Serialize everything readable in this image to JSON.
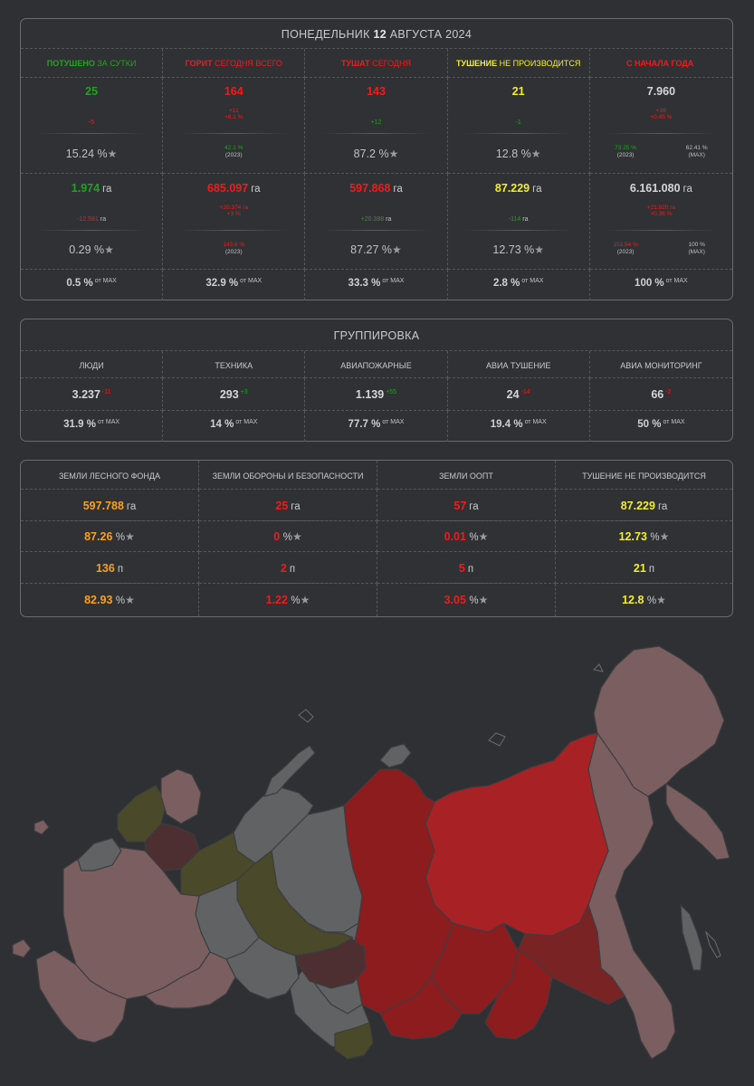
{
  "header": {
    "day": "ПОНЕДЕЛЬНИК",
    "date_num": "12",
    "month_year": "АВГУСТА 2024"
  },
  "summary": {
    "columns": [
      {
        "label_a": "ПОТУШЕНО",
        "label_b": "ЗА СУТКИ",
        "color_a": "#21a321",
        "color_b": "#21a321",
        "count": "25",
        "count_color": "#21a321",
        "count_delta": "-5",
        "count_delta_color": "#ef1c1c",
        "count_pct": "15.24 %",
        "area": "1.974",
        "area_unit": "га",
        "area_color": "#21a321",
        "area_delta": "-12.581",
        "area_delta_unit": "га",
        "area_delta_color": "#ef1c1c",
        "area_pct": "0.29 %",
        "max_pct": "0.5 %",
        "max_label": "от MAX"
      },
      {
        "label_a": "ГОРИТ",
        "label_b": "СЕГОДНЯ ВСЕГО",
        "color_a": "#ef1c1c",
        "color_b": "#ef1c1c",
        "count": "164",
        "count_color": "#ef1c1c",
        "count_delta_1": "+11",
        "count_delta_2": "+6.1 %",
        "count_delta_color": "#ef1c1c",
        "count_year_pct": "42.1 %",
        "count_year_pct_color": "#21a321",
        "count_year": "(2023)",
        "area": "685.097",
        "area_unit": "га",
        "area_color": "#ef1c1c",
        "area_delta_1": "+20.374 га",
        "area_delta_2": "+3 %",
        "area_delta_color": "#ef1c1c",
        "area_year_pct": "143.6 %",
        "area_year_pct_color": "#ef1c1c",
        "area_year": "(2023)",
        "max_pct": "32.9 %",
        "max_label": "от MAX"
      },
      {
        "label_a": "ТУШАТ",
        "label_b": "СЕГОДНЯ",
        "color_a": "#ef1c1c",
        "color_b": "#ef1c1c",
        "count": "143",
        "count_color": "#ef1c1c",
        "count_delta": "+12",
        "count_delta_color": "#21a321",
        "count_pct": "87.2 %",
        "area": "597.868",
        "area_unit": "га",
        "area_color": "#ef1c1c",
        "area_delta": "+20.388",
        "area_delta_unit": "га",
        "area_delta_color": "#21a321",
        "area_pct": "87.27 %",
        "max_pct": "33.3 %",
        "max_label": "от MAX"
      },
      {
        "label_a": "ТУШЕНИЕ",
        "label_b": "НЕ ПРОИЗВОДИТСЯ",
        "color_a": "#f2ef2a",
        "color_b": "#f2ef2a",
        "count": "21",
        "count_color": "#f2ef2a",
        "count_delta": "-1",
        "count_delta_color": "#21a321",
        "count_pct": "12.8 %",
        "area": "87.229",
        "area_unit": "га",
        "area_color": "#f2ef2a",
        "area_delta": "-114",
        "area_delta_unit": "га",
        "area_delta_color": "#21a321",
        "area_pct": "12.73 %",
        "max_pct": "2.8 %",
        "max_label": "от MAX"
      },
      {
        "label_a": "С НАЧАЛА ГОДА",
        "label_b": "",
        "color_a": "#ef1c1c",
        "color_b": "#ef1c1c",
        "count": "7.960",
        "count_color": "#d5d6d8",
        "count_delta_1": "+36",
        "count_delta_2": "+0.45 %",
        "count_delta_color": "#ef1c1c",
        "count_year_pct": "73.25 %",
        "count_year_pct_color": "#21a321",
        "count_year": "(2023)",
        "count_max_pct": "62.41 %",
        "count_max": "(MAX)",
        "area": "6.161.080",
        "area_unit": "га",
        "area_color": "#d5d6d8",
        "area_delta_1": "+21.920 га",
        "area_delta_2": "+0.36 %",
        "area_delta_color": "#ef1c1c",
        "area_year_pct": "153.54 %",
        "area_year_pct_color": "#ef1c1c",
        "area_year": "(2023)",
        "area_max_pct": "100 %",
        "area_max": "(MAX)",
        "max_pct": "100 %",
        "max_label": "от MAX"
      }
    ]
  },
  "group": {
    "title": "ГРУППИРОВКА",
    "columns": [
      {
        "label": "ЛЮДИ",
        "value": "3.237",
        "delta": "-11",
        "delta_color": "#ef1c1c",
        "max_pct": "31.9 %",
        "max_label": "от MAX"
      },
      {
        "label": "ТЕХНИКА",
        "value": "293",
        "delta": "+3",
        "delta_color": "#21a321",
        "max_pct": "14 %",
        "max_label": "от MAX"
      },
      {
        "label": "АВИАПОЖАРНЫЕ",
        "value": "1.139",
        "delta": "+55",
        "delta_color": "#21a321",
        "max_pct": "77.7 %",
        "max_label": "от MAX"
      },
      {
        "label": "АВИА ТУШЕНИЕ",
        "value": "24",
        "delta": "-14",
        "delta_color": "#ef1c1c",
        "max_pct": "19.4 %",
        "max_label": "от MAX"
      },
      {
        "label": "АВИА МОНИТОРИНГ",
        "value": "66",
        "delta": "-2",
        "delta_color": "#ef1c1c",
        "max_pct": "50 %",
        "max_label": "от MAX"
      }
    ]
  },
  "lands": {
    "columns": [
      {
        "label": "ЗЕМЛИ ЛЕСНОГО ФОНДА",
        "color": "#f7a21d",
        "area": "597.788",
        "area_unit": "га",
        "area_pct": "87.26",
        "count": "136",
        "count_unit": "п",
        "count_pct": "82.93"
      },
      {
        "label": "ЗЕМЛИ ОБОРОНЫ И БЕЗОПАСНОСТИ",
        "color": "#ef1c1c",
        "area": "25",
        "area_unit": "га",
        "area_pct": "0",
        "count": "2",
        "count_unit": "п",
        "count_pct": "1.22"
      },
      {
        "label": "ЗЕМЛИ ООПТ",
        "color": "#ef1c1c",
        "area": "57",
        "area_unit": "га",
        "area_pct": "0.01",
        "count": "5",
        "count_unit": "п",
        "count_pct": "3.05"
      },
      {
        "label": "ТУШЕНИЕ НЕ ПРОИЗВОДИТСЯ",
        "color": "#f2ef2a",
        "area": "87.229",
        "area_unit": "га",
        "area_pct": "12.73",
        "count": "21",
        "count_unit": "п",
        "count_pct": "12.8"
      }
    ],
    "pct_sign": "%",
    "star": "★"
  },
  "map": {
    "colors": {
      "red": "#8c1c1e",
      "brightred": "#a82125",
      "darkmaroon": "#4e2f31",
      "olive": "#4a4a2a",
      "pink": "#7b5f60",
      "gray": "#616263"
    }
  }
}
